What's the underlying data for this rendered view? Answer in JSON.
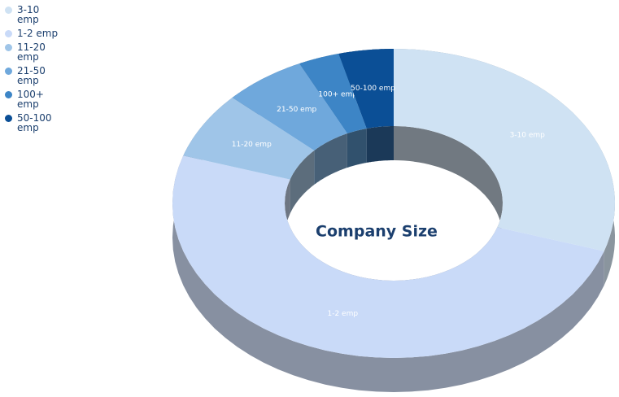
{
  "chart_data": {
    "type": "donut",
    "title": "Company Size",
    "categories": [
      "3-10 emp",
      "1-2 emp",
      "11-20 emp",
      "21-50 emp",
      "100+ emp",
      "50-100 emp"
    ],
    "values": [
      30,
      50,
      7,
      6,
      3,
      4
    ],
    "colors": [
      "#cfe2f3",
      "#c9daf8",
      "#9fc5e8",
      "#6fa8dc",
      "#3d85c6",
      "#0b4f96"
    ],
    "legend": "top-left"
  }
}
